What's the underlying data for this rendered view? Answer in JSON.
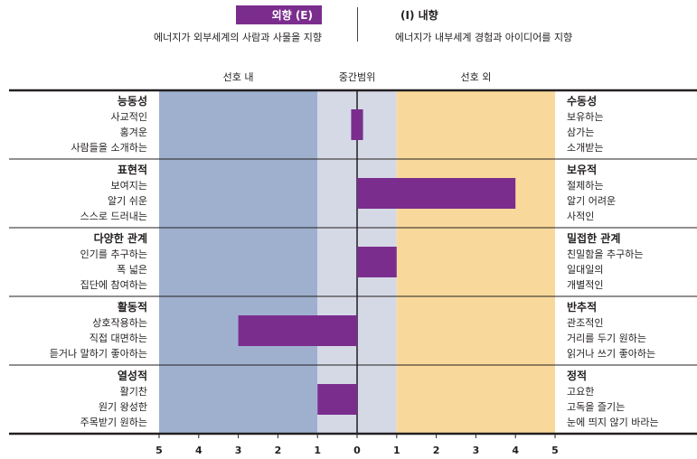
{
  "header": {
    "left_title": "외향 (E)",
    "left_desc": "에너지가 외부세계의 사람과 사물을 지향",
    "right_title": "(I) 내향",
    "right_desc": "에너지가 내부세계 경험과 아이디어를 지향"
  },
  "colors": {
    "accent": "#7b2d8e",
    "left_zone": "#9fb0cf",
    "mid_zone": "#d5d9e6",
    "right_zone": "#f9d99b"
  },
  "chart_data": {
    "type": "bar",
    "orientation": "horizontal",
    "zones": [
      "선호 내",
      "중간범위",
      "선호 외"
    ],
    "xlim": [
      -5,
      5
    ],
    "ticks": [
      "5",
      "4",
      "3",
      "2",
      "1",
      "0",
      "1",
      "2",
      "3",
      "4",
      "5"
    ],
    "categories": [
      "능동성 – 수동성",
      "표현적 – 보유적",
      "다양한 관계 – 밀접한 관계",
      "활동적 – 반추적",
      "열성적 – 정적"
    ],
    "values": [
      0.15,
      4,
      1,
      -3,
      -1
    ],
    "rows": [
      {
        "left_head": "능동성",
        "left_lines": [
          "사교적인",
          "홍겨운",
          "사람들을 소개하는"
        ],
        "right_head": "수동성",
        "right_lines": [
          "보유하는",
          "삼가는",
          "소개받는"
        ]
      },
      {
        "left_head": "표현적",
        "left_lines": [
          "보여지는",
          "알기 쉬운",
          "스스로 드러내는"
        ],
        "right_head": "보유적",
        "right_lines": [
          "절제하는",
          "알기 어려운",
          "사적인"
        ]
      },
      {
        "left_head": "다양한 관계",
        "left_lines": [
          "인기를 추구하는",
          "폭 넓은",
          "집단에 참여하는"
        ],
        "right_head": "밀접한 관계",
        "right_lines": [
          "친밀함을 추구하는",
          "일대일의",
          "개별적인"
        ]
      },
      {
        "left_head": "활동적",
        "left_lines": [
          "상호작용하는",
          "직접 대면하는",
          "듣거나 말하기 좋아하는"
        ],
        "right_head": "반추적",
        "right_lines": [
          "관조적인",
          "거리를 두기 원하는",
          "읽거나 쓰기 좋아하는"
        ]
      },
      {
        "left_head": "열성적",
        "left_lines": [
          "활기찬",
          "원기 왕성한",
          "주목받기 원하는"
        ],
        "right_head": "정적",
        "right_lines": [
          "고요한",
          "고독을 즐기는",
          "눈에 띄지 않기 바라는"
        ]
      }
    ]
  }
}
